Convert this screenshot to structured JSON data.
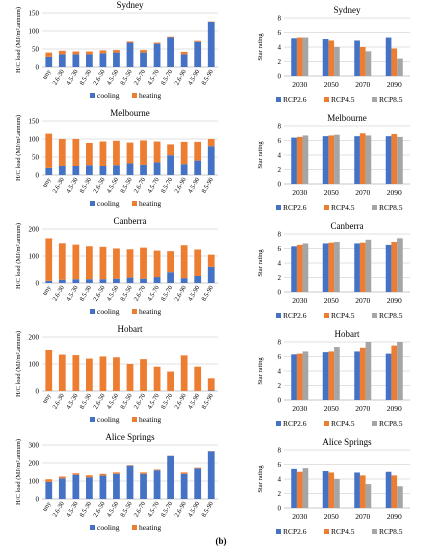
{
  "figure": {
    "caption": "(b)"
  },
  "colors": {
    "cooling": "#4472c4",
    "heating": "#ed7d31",
    "rcp26": "#4472c4",
    "rcp45": "#ed7d31",
    "rcp85": "#a5a5a5",
    "grid": "#d9d9d9"
  },
  "chart_data": [
    {
      "type": "bar",
      "stacked": true,
      "title": "Sydney",
      "ylabel": "H/C load (MJ/m².annum)",
      "ylim": [
        0,
        150
      ],
      "yticks": [
        0,
        50,
        100,
        150
      ],
      "categories": [
        "tmy",
        "2.6-30",
        "4.5-30",
        "8.5-30",
        "2.6-50",
        "4.5-50",
        "8.5-50",
        "2.6-70",
        "4.5-70",
        "8.5-70",
        "2.6-90",
        "4.5-90",
        "8.5-90"
      ],
      "series": [
        {
          "name": "cooling",
          "values": [
            28,
            35,
            35,
            35,
            38,
            40,
            68,
            40,
            65,
            82,
            35,
            70,
            125
          ]
        },
        {
          "name": "heating",
          "values": [
            12,
            10,
            8,
            8,
            8,
            7,
            3,
            7,
            3,
            2,
            7,
            3,
            1
          ]
        }
      ],
      "legend": "bottom",
      "grid": true
    },
    {
      "type": "bar",
      "title": "Sydney",
      "ylabel": "Star rating",
      "ylim": [
        0,
        8
      ],
      "yticks": [
        0,
        2,
        4,
        6,
        8
      ],
      "categories": [
        "2030",
        "2050",
        "2070",
        "2090"
      ],
      "series": [
        {
          "name": "RCP2.6",
          "values": [
            5.2,
            5.1,
            4.9,
            5.3
          ]
        },
        {
          "name": "RCP4.5",
          "values": [
            5.3,
            4.9,
            4.0,
            3.8
          ]
        },
        {
          "name": "RCP8.5",
          "values": [
            5.3,
            4.0,
            3.4,
            2.4
          ]
        }
      ],
      "legend": "bottom",
      "grid": true
    },
    {
      "type": "bar",
      "stacked": true,
      "title": "Melbourne",
      "ylabel": "H/C load (MJ/m².annum)",
      "ylim": [
        0,
        150
      ],
      "yticks": [
        0,
        50,
        100,
        150
      ],
      "categories": [
        "tmy",
        "2.6-30",
        "4.5-30",
        "8.5-30",
        "2.6-50",
        "4.5-50",
        "8.5-50",
        "2.6-70",
        "4.5-70",
        "8.5-70",
        "2.6-90",
        "4.5-90",
        "8.5-90"
      ],
      "series": [
        {
          "name": "cooling",
          "values": [
            20,
            25,
            25,
            27,
            25,
            27,
            32,
            28,
            35,
            55,
            30,
            40,
            80
          ]
        },
        {
          "name": "heating",
          "values": [
            95,
            75,
            75,
            62,
            68,
            68,
            58,
            68,
            58,
            30,
            62,
            52,
            20
          ]
        }
      ],
      "legend": "bottom",
      "grid": true
    },
    {
      "type": "bar",
      "title": "Melbourne",
      "ylabel": "Star rating",
      "ylim": [
        0,
        8
      ],
      "yticks": [
        0,
        2,
        4,
        6,
        8
      ],
      "categories": [
        "2030",
        "2050",
        "2070",
        "2090"
      ],
      "series": [
        {
          "name": "RCP2.6",
          "values": [
            6.4,
            6.6,
            6.6,
            6.6
          ]
        },
        {
          "name": "RCP4.5",
          "values": [
            6.5,
            6.7,
            7.0,
            6.9
          ]
        },
        {
          "name": "RCP8.5",
          "values": [
            6.7,
            6.8,
            6.7,
            6.5
          ]
        }
      ],
      "legend": "bottom",
      "grid": true
    },
    {
      "type": "bar",
      "stacked": true,
      "title": "Canberra",
      "ylabel": "H/C load (MJ/m².annum)",
      "ylim": [
        0,
        200
      ],
      "yticks": [
        0,
        100,
        200
      ],
      "categories": [
        "tmy",
        "2.6-30",
        "4.5-30",
        "8.5-30",
        "2.6-50",
        "4.5-50",
        "8.5-50",
        "2.6-70",
        "4.5-70",
        "8.5-70",
        "2.6-90",
        "4.5-90",
        "8.5-90"
      ],
      "series": [
        {
          "name": "cooling",
          "values": [
            8,
            12,
            14,
            14,
            14,
            16,
            20,
            16,
            22,
            40,
            18,
            26,
            60
          ]
        },
        {
          "name": "heating",
          "values": [
            157,
            135,
            128,
            122,
            120,
            112,
            105,
            115,
            98,
            78,
            122,
            98,
            45
          ]
        }
      ],
      "legend": "bottom",
      "grid": true
    },
    {
      "type": "bar",
      "title": "Canberra",
      "ylabel": "Star rating",
      "ylim": [
        0,
        8
      ],
      "yticks": [
        0,
        2,
        4,
        6,
        8
      ],
      "categories": [
        "2030",
        "2050",
        "2070",
        "2090"
      ],
      "series": [
        {
          "name": "RCP2.6",
          "values": [
            6.3,
            6.7,
            6.7,
            6.5
          ]
        },
        {
          "name": "RCP4.5",
          "values": [
            6.5,
            6.8,
            6.8,
            6.9
          ]
        },
        {
          "name": "RCP8.5",
          "values": [
            6.7,
            6.9,
            7.2,
            7.4
          ]
        }
      ],
      "legend": "bottom",
      "grid": true
    },
    {
      "type": "bar",
      "stacked": true,
      "title": "Hobart",
      "ylabel": "H/C load (MJ/m².annum)",
      "ylim": [
        0,
        200
      ],
      "yticks": [
        0,
        100,
        200
      ],
      "categories": [
        "tmy",
        "2.6-30",
        "4.5-30",
        "8.5-30",
        "2.6-50",
        "4.5-50",
        "8.5-50",
        "2.6-70",
        "4.5-70",
        "8.5-70",
        "2.6-90",
        "4.5-90",
        "8.5-90"
      ],
      "series": [
        {
          "name": "cooling",
          "values": [
            0,
            0,
            0,
            0,
            0,
            0,
            0,
            0,
            0,
            0,
            0,
            0,
            2
          ]
        },
        {
          "name": "heating",
          "values": [
            152,
            135,
            133,
            120,
            128,
            125,
            100,
            118,
            90,
            72,
            132,
            90,
            45
          ]
        }
      ],
      "legend": "bottom",
      "grid": true
    },
    {
      "type": "bar",
      "title": "Hobart",
      "ylabel": "Star rating",
      "ylim": [
        0,
        8
      ],
      "yticks": [
        0,
        2,
        4,
        6,
        8
      ],
      "categories": [
        "2030",
        "2050",
        "2070",
        "2090"
      ],
      "series": [
        {
          "name": "RCP2.6",
          "values": [
            6.3,
            6.6,
            6.7,
            6.4
          ]
        },
        {
          "name": "RCP4.5",
          "values": [
            6.4,
            6.7,
            7.2,
            7.5
          ]
        },
        {
          "name": "RCP8.5",
          "values": [
            6.7,
            7.3,
            8.0,
            8.0
          ]
        }
      ],
      "legend": "bottom",
      "grid": true
    },
    {
      "type": "bar",
      "stacked": true,
      "title": "Alice Springs",
      "ylabel": "H/C load (MJ/m².annum)",
      "ylim": [
        0,
        300
      ],
      "yticks": [
        0,
        100,
        200,
        300
      ],
      "categories": [
        "tmy",
        "2.6-30",
        "4.5-30",
        "8.5-30",
        "2.6-50",
        "4.5-50",
        "8.5-50",
        "2.6-70",
        "4.5-70",
        "8.5-70",
        "2.6-90",
        "4.5-90",
        "8.5-90"
      ],
      "series": [
        {
          "name": "cooling",
          "values": [
            95,
            115,
            135,
            120,
            130,
            140,
            185,
            140,
            160,
            240,
            140,
            170,
            265
          ]
        },
        {
          "name": "heating",
          "values": [
            15,
            10,
            8,
            12,
            10,
            8,
            3,
            8,
            4,
            1,
            8,
            4,
            1
          ]
        }
      ],
      "legend": "bottom",
      "grid": true
    },
    {
      "type": "bar",
      "title": "Alice Springs",
      "ylabel": "Star rating",
      "ylim": [
        0,
        8
      ],
      "yticks": [
        0,
        2,
        4,
        6,
        8
      ],
      "categories": [
        "2030",
        "2050",
        "2070",
        "2090"
      ],
      "series": [
        {
          "name": "RCP2.6",
          "values": [
            5.4,
            5.1,
            4.9,
            5.0
          ]
        },
        {
          "name": "RCP4.5",
          "values": [
            5.0,
            4.9,
            4.5,
            4.5
          ]
        },
        {
          "name": "RCP8.5",
          "values": [
            5.5,
            4.0,
            3.3,
            3.0
          ]
        }
      ],
      "legend": "bottom",
      "grid": true
    }
  ]
}
